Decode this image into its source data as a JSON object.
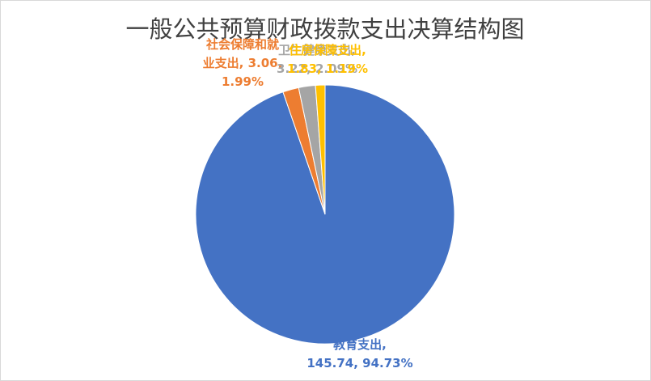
{
  "chart_data": {
    "type": "pie",
    "title": "一般公共预算财政拨款支出决算结构图",
    "values": [
      145.74,
      3.06,
      3.22,
      1.83
    ],
    "value_labels": [
      "教育支出,\n145.74, 94.73%",
      "社会保障和就\n业支出, 3.06,\n1.99%",
      "卫生健康支出,\n3.22, 2.09%",
      "住房保障支出,\n1.83, 1.19%"
    ],
    "colors": [
      "#4472c4",
      "#ed7d31",
      "#a5a5a5",
      "#ffc000"
    ]
  }
}
